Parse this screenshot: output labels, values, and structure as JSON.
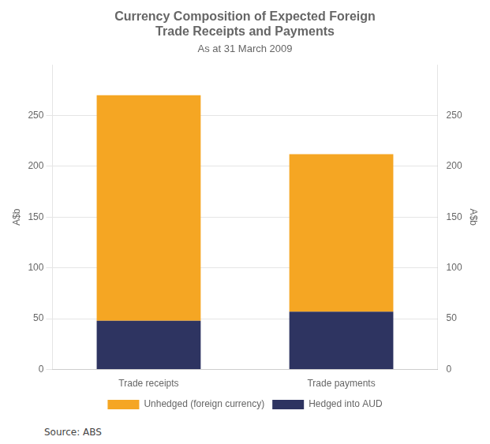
{
  "chart_data": {
    "type": "bar",
    "title": "Currency Composition of Expected Foreign\nTrade Receipts and Payments",
    "subtitle": "As at 31 March 2009",
    "categories": [
      "Trade receipts",
      "Trade payments"
    ],
    "series": [
      {
        "name": "Hedged into AUD",
        "color": "#2e3461",
        "values": [
          48,
          57
        ]
      },
      {
        "name": "Unhedged (foreign currency)",
        "color": "#f5a623",
        "values": [
          222,
          155
        ]
      }
    ],
    "stacked": true,
    "ylabel": "A$b",
    "y2label": "A$b",
    "ylim": [
      0,
      300
    ],
    "yticks": [
      0,
      50,
      100,
      150,
      200,
      250
    ],
    "y2lim": [
      0,
      300
    ],
    "y2ticks": [
      0,
      50,
      100,
      150,
      200,
      250
    ],
    "grid": true,
    "legend": "bottom",
    "source": "Source: ABS"
  }
}
